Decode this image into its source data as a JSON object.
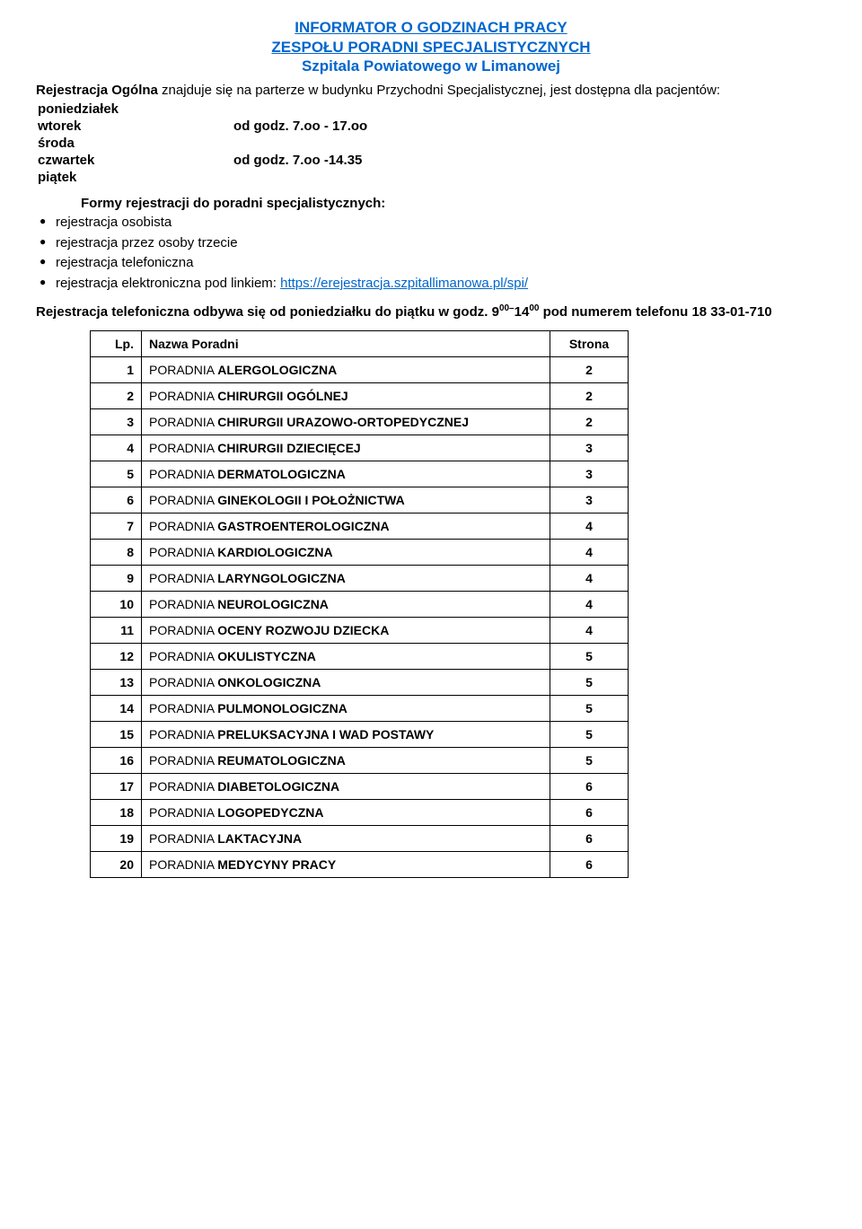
{
  "header": {
    "line1": "INFORMATOR O GODZINACH PRACY",
    "line2": "ZESPOŁU   PORADNI   SPECJALISTYCZNYCH",
    "line3": "Szpitala Powiatowego w Limanowej"
  },
  "intro": {
    "lead": "Rejestracja Ogólna",
    "rest": " znajduje się na parterze w budynku Przychodni Specjalistycznej, jest dostępna dla pacjentów:"
  },
  "schedule": {
    "rows": [
      {
        "day": "poniedziałek",
        "hours": ""
      },
      {
        "day": "wtorek",
        "hours": "od godz. 7.oo - 17.oo"
      },
      {
        "day": "środa",
        "hours": ""
      },
      {
        "day": "czwartek",
        "hours": "od godz. 7.oo -14.35"
      },
      {
        "day": "piątek",
        "hours": ""
      }
    ]
  },
  "forms": {
    "heading": "Formy rejestracji do poradni specjalistycznych:",
    "items": [
      {
        "text": "rejestracja osobista"
      },
      {
        "text": "rejestracja przez osoby trzecie"
      },
      {
        "text": "rejestracja telefoniczna"
      },
      {
        "text": "rejestracja elektroniczna pod linkiem: ",
        "link": "https://erejestracja.szpitallimanowa.pl/spi/"
      }
    ]
  },
  "phone": {
    "part1": "Rejestracja telefoniczna odbywa się od poniedziałku do piątku w godz. 9",
    "sup1": "00–",
    "part2": "14",
    "sup2": "00",
    "part3": " pod numerem telefonu 18 33-01-710"
  },
  "table": {
    "head_lp": "Lp.",
    "head_name": "Nazwa Poradni",
    "head_page": "Strona",
    "prefix": "PORADNIA ",
    "rows": [
      {
        "lp": "1",
        "name": "ALERGOLOGICZNA",
        "page": "2"
      },
      {
        "lp": "2",
        "name": "CHIRURGII OGÓLNEJ",
        "page": "2"
      },
      {
        "lp": "3",
        "name": "CHIRURGII URAZOWO-ORTOPEDYCZNEJ",
        "page": "2"
      },
      {
        "lp": "4",
        "name": "CHIRURGII DZIECIĘCEJ",
        "page": "3"
      },
      {
        "lp": "5",
        "name": "DERMATOLOGICZNA",
        "page": "3"
      },
      {
        "lp": "6",
        "name": "GINEKOLOGII I POŁOŻNICTWA",
        "page": "3"
      },
      {
        "lp": "7",
        "prefix_override": "PORADNIA  ",
        "name": "GASTROENTEROLOGICZNA",
        "page": "4"
      },
      {
        "lp": "8",
        "name": "KARDIOLOGICZNA",
        "page": "4"
      },
      {
        "lp": "9",
        "name": "LARYNGOLOGICZNA",
        "page": "4"
      },
      {
        "lp": "10",
        "name": "NEUROLOGICZNA",
        "page": "4"
      },
      {
        "lp": "11",
        "name": "OCENY ROZWOJU DZIECKA",
        "page": "4"
      },
      {
        "lp": "12",
        "name": "OKULISTYCZNA",
        "page": "5"
      },
      {
        "lp": "13",
        "name": "ONKOLOGICZNA",
        "page": "5"
      },
      {
        "lp": "14",
        "name": "PULMONOLOGICZNA",
        "page": "5"
      },
      {
        "lp": "15",
        "name": "PRELUKSACYJNA I WAD POSTAWY",
        "page": "5"
      },
      {
        "lp": "16",
        "name": "REUMATOLOGICZNA",
        "page": "5"
      },
      {
        "lp": "17",
        "name": "DIABETOLOGICZNA",
        "page": "6"
      },
      {
        "lp": "18",
        "name": "LOGOPEDYCZNA",
        "page": "6"
      },
      {
        "lp": "19",
        "name": "LAKTACYJNA",
        "page": "6"
      },
      {
        "lp": "20",
        "name": "MEDYCYNY PRACY",
        "page": "6"
      }
    ]
  }
}
